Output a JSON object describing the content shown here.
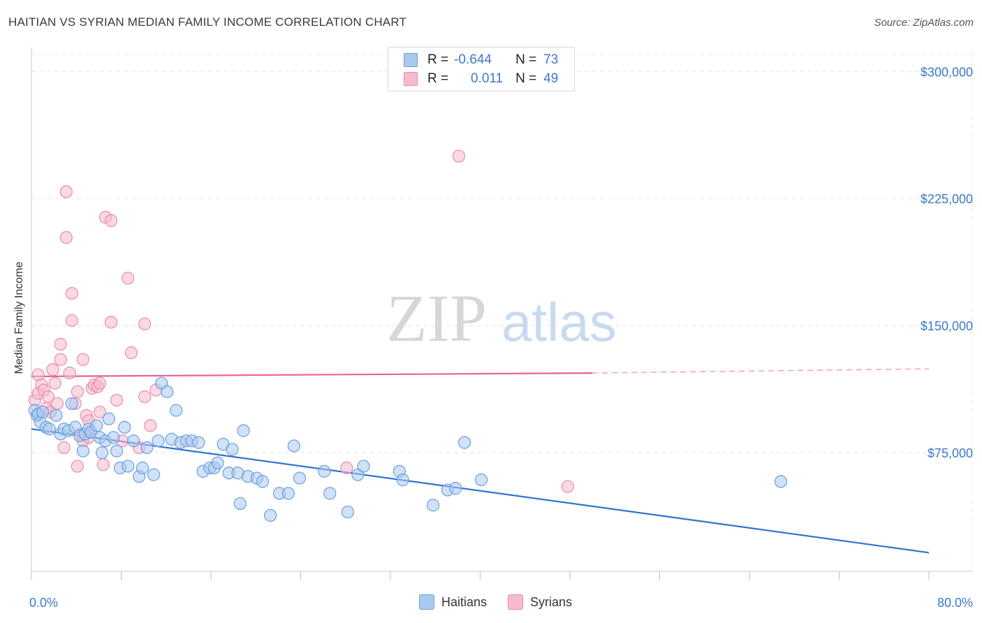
{
  "header": {
    "title": "HAITIAN VS SYRIAN MEDIAN FAMILY INCOME CORRELATION CHART",
    "source": "Source: ZipAtlas.com"
  },
  "watermark": {
    "zip": "ZIP",
    "atlas": "atlas"
  },
  "legend": {
    "rows": [
      {
        "r_label": "R =",
        "r_value": "-0.644",
        "n_label": "N =",
        "n_value": "73",
        "color": "#a9c9f3"
      },
      {
        "r_label": "R =",
        "r_value": "0.011",
        "n_label": "N =",
        "n_value": "49",
        "color": "#f7b9ce"
      }
    ]
  },
  "bottom_legend": {
    "haitians": "Haitians",
    "syrians": "Syrians"
  },
  "colors": {
    "haitian_fill": "#a9c9f3",
    "haitian_stroke": "#6b9fdc",
    "haitian_line": "#2f74d0",
    "syrian_fill": "#f7b9ce",
    "syrian_stroke": "#e98aaa",
    "syrian_line": "#e8638f",
    "grid": "#e3e3e3",
    "axis_text": "#3e78c8"
  },
  "chart_data": {
    "type": "scatter",
    "title": "HAITIAN VS SYRIAN MEDIAN FAMILY INCOME CORRELATION CHART",
    "xlabel": "",
    "ylabel": "Median Family Income",
    "xlim": [
      0,
      80
    ],
    "ylim": [
      5000,
      310000
    ],
    "x_tick_labels": [
      "0.0%",
      "80.0%"
    ],
    "y_ticks": [
      75000,
      150000,
      225000,
      300000
    ],
    "y_tick_labels": [
      "$75,000",
      "$150,000",
      "$225,000",
      "$300,000"
    ],
    "grid": true,
    "legend_position": "top-center",
    "series": [
      {
        "name": "Haitians",
        "r": -0.644,
        "n": 73,
        "trend": {
          "x": [
            0,
            80
          ],
          "y": [
            89000,
            16000
          ]
        },
        "points": [
          [
            0.3,
            100000
          ],
          [
            0.5,
            97000
          ],
          [
            0.6,
            98000
          ],
          [
            0.8,
            93000
          ],
          [
            1.0,
            99000
          ],
          [
            1.3,
            90000
          ],
          [
            1.6,
            89000
          ],
          [
            2.2,
            97000
          ],
          [
            2.6,
            86000
          ],
          [
            2.9,
            89000
          ],
          [
            3.3,
            88000
          ],
          [
            3.6,
            104000
          ],
          [
            3.9,
            90000
          ],
          [
            4.3,
            85000
          ],
          [
            4.6,
            76000
          ],
          [
            4.8,
            86000
          ],
          [
            5.1,
            89000
          ],
          [
            5.3,
            87000
          ],
          [
            5.8,
            91000
          ],
          [
            6.1,
            84000
          ],
          [
            6.3,
            75000
          ],
          [
            6.6,
            82000
          ],
          [
            6.9,
            95000
          ],
          [
            7.3,
            84000
          ],
          [
            7.6,
            76000
          ],
          [
            7.9,
            66000
          ],
          [
            8.3,
            90000
          ],
          [
            8.6,
            67000
          ],
          [
            9.1,
            82000
          ],
          [
            9.6,
            61000
          ],
          [
            9.9,
            66000
          ],
          [
            10.3,
            78000
          ],
          [
            10.9,
            62000
          ],
          [
            11.3,
            82000
          ],
          [
            11.6,
            116000
          ],
          [
            12.1,
            111000
          ],
          [
            12.5,
            83000
          ],
          [
            12.9,
            100000
          ],
          [
            13.3,
            81000
          ],
          [
            13.8,
            82000
          ],
          [
            14.3,
            82000
          ],
          [
            14.9,
            81000
          ],
          [
            15.3,
            64000
          ],
          [
            15.9,
            66000
          ],
          [
            16.3,
            66000
          ],
          [
            16.6,
            69000
          ],
          [
            17.1,
            80000
          ],
          [
            17.6,
            63000
          ],
          [
            17.9,
            77000
          ],
          [
            18.4,
            63000
          ],
          [
            18.9,
            88000
          ],
          [
            19.3,
            61000
          ],
          [
            18.6,
            45000
          ],
          [
            20.1,
            60000
          ],
          [
            20.6,
            58000
          ],
          [
            21.3,
            38000
          ],
          [
            22.1,
            51000
          ],
          [
            22.9,
            51000
          ],
          [
            23.4,
            79000
          ],
          [
            23.9,
            60000
          ],
          [
            26.1,
            64000
          ],
          [
            26.6,
            51000
          ],
          [
            28.2,
            40000
          ],
          [
            29.1,
            62000
          ],
          [
            29.6,
            67000
          ],
          [
            32.8,
            64000
          ],
          [
            33.1,
            59000
          ],
          [
            35.8,
            44000
          ],
          [
            37.1,
            53000
          ],
          [
            37.8,
            54000
          ],
          [
            38.6,
            81000
          ],
          [
            40.1,
            59000
          ],
          [
            66.8,
            58000
          ]
        ]
      },
      {
        "name": "Syrians",
        "r": 0.011,
        "n": 49,
        "trend": {
          "x": [
            0,
            50
          ],
          "y": [
            120000,
            122000
          ]
        },
        "trend_dashed": {
          "x": [
            50,
            80
          ],
          "y": [
            122000,
            124500
          ]
        },
        "points": [
          [
            0.3,
            106000
          ],
          [
            0.6,
            121000
          ],
          [
            0.6,
            110000
          ],
          [
            0.9,
            115000
          ],
          [
            1.1,
            112000
          ],
          [
            1.3,
            101000
          ],
          [
            1.5,
            108000
          ],
          [
            1.7,
            99000
          ],
          [
            1.9,
            124000
          ],
          [
            2.1,
            116000
          ],
          [
            2.3,
            104000
          ],
          [
            2.6,
            130000
          ],
          [
            2.6,
            139000
          ],
          [
            2.9,
            78000
          ],
          [
            3.1,
            229000
          ],
          [
            3.1,
            202000
          ],
          [
            3.4,
            122000
          ],
          [
            3.6,
            169000
          ],
          [
            3.6,
            153000
          ],
          [
            3.9,
            104000
          ],
          [
            4.1,
            111000
          ],
          [
            4.1,
            67000
          ],
          [
            4.4,
            86000
          ],
          [
            4.6,
            130000
          ],
          [
            4.6,
            82000
          ],
          [
            4.9,
            97000
          ],
          [
            5.1,
            94000
          ],
          [
            5.1,
            84000
          ],
          [
            5.4,
            113000
          ],
          [
            5.6,
            115000
          ],
          [
            5.9,
            114000
          ],
          [
            6.1,
            99000
          ],
          [
            6.1,
            116000
          ],
          [
            6.4,
            68000
          ],
          [
            6.6,
            214000
          ],
          [
            7.1,
            212000
          ],
          [
            7.1,
            152000
          ],
          [
            7.6,
            106000
          ],
          [
            8.1,
            82000
          ],
          [
            8.6,
            178000
          ],
          [
            8.9,
            134000
          ],
          [
            9.6,
            78000
          ],
          [
            10.1,
            151000
          ],
          [
            10.1,
            108000
          ],
          [
            10.6,
            91000
          ],
          [
            11.1,
            112000
          ],
          [
            28.1,
            66000
          ],
          [
            38.1,
            250000
          ],
          [
            47.8,
            55000
          ]
        ]
      }
    ]
  }
}
